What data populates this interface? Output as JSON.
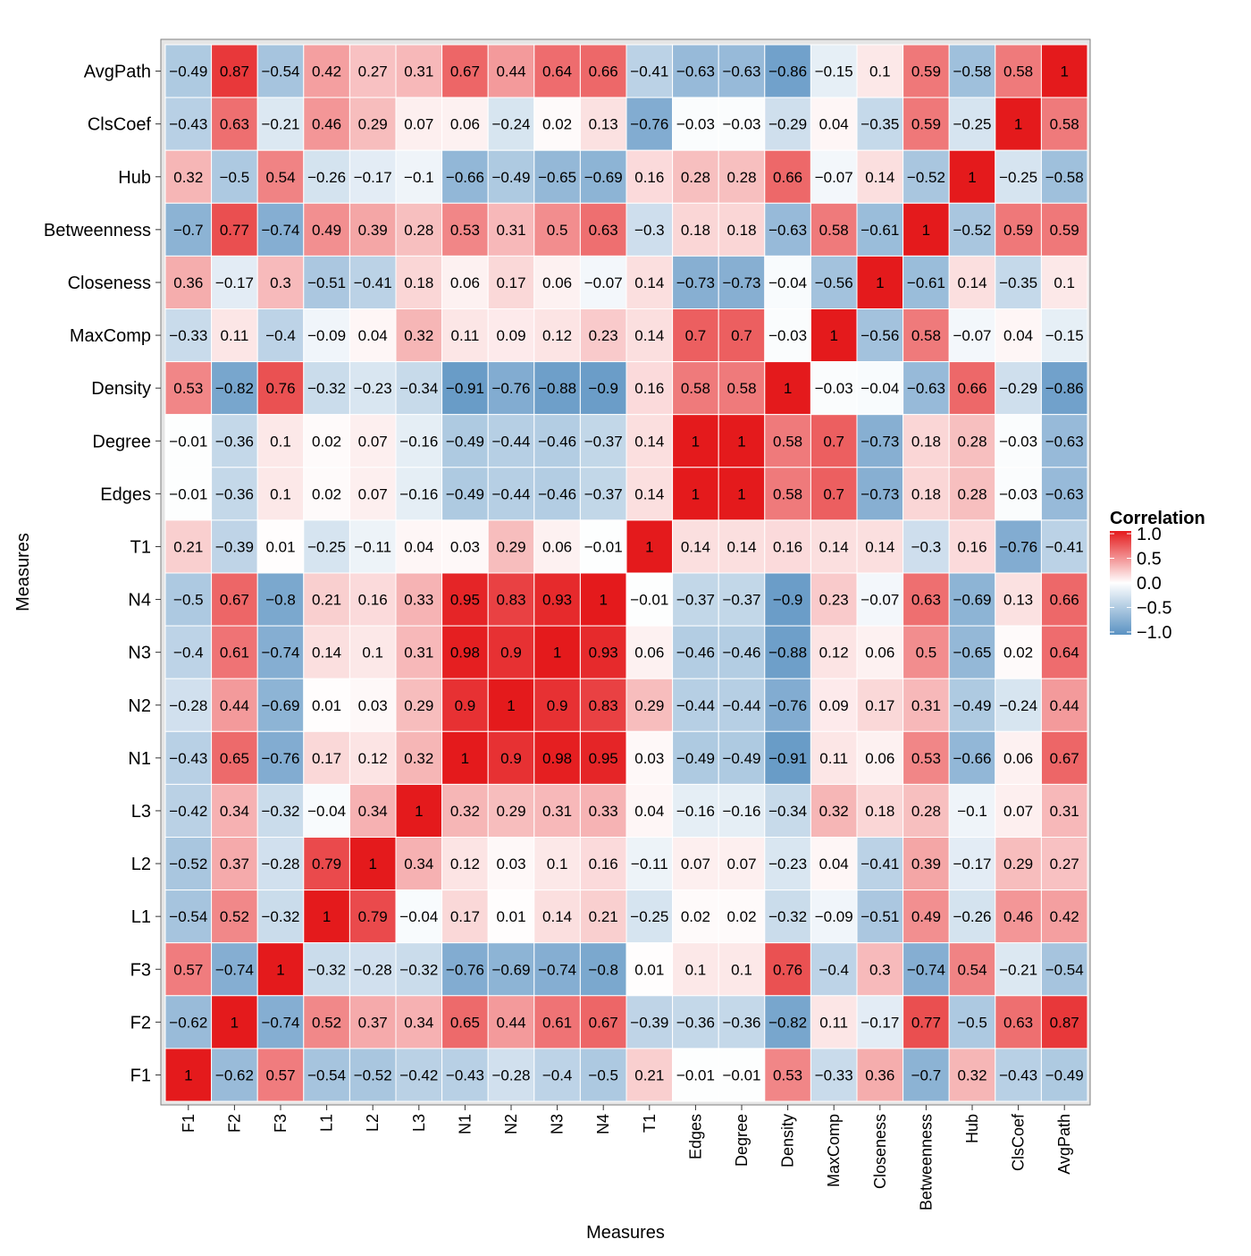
{
  "chart_data": {
    "type": "heatmap",
    "title": "",
    "xlabel": "Measures",
    "ylabel": "Measures",
    "x_categories": [
      "F1",
      "F2",
      "F3",
      "L1",
      "L2",
      "L3",
      "N1",
      "N2",
      "N3",
      "N4",
      "T1",
      "Edges",
      "Degree",
      "Density",
      "MaxComp",
      "Closeness",
      "Betweenness",
      "Hub",
      "ClsCoef",
      "AvgPath"
    ],
    "y_categories_top_to_bottom": [
      "AvgPath",
      "ClsCoef",
      "Hub",
      "Betweenness",
      "Closeness",
      "MaxComp",
      "Density",
      "Degree",
      "Edges",
      "T1",
      "N4",
      "N3",
      "N2",
      "N1",
      "L3",
      "L2",
      "L1",
      "F3",
      "F2",
      "F1"
    ],
    "values": [
      [
        -0.49,
        0.87,
        -0.54,
        0.42,
        0.27,
        0.31,
        0.67,
        0.44,
        0.64,
        0.66,
        -0.41,
        -0.63,
        -0.63,
        -0.86,
        -0.15,
        0.1,
        0.59,
        -0.58,
        0.58,
        1
      ],
      [
        -0.43,
        0.63,
        -0.21,
        0.46,
        0.29,
        0.07,
        0.06,
        -0.24,
        0.02,
        0.13,
        -0.76,
        -0.03,
        -0.03,
        -0.29,
        0.04,
        -0.35,
        0.59,
        -0.25,
        1,
        0.58
      ],
      [
        0.32,
        -0.5,
        0.54,
        -0.26,
        -0.17,
        -0.1,
        -0.66,
        -0.49,
        -0.65,
        -0.69,
        0.16,
        0.28,
        0.28,
        0.66,
        -0.07,
        0.14,
        -0.52,
        1,
        -0.25,
        -0.58
      ],
      [
        -0.7,
        0.77,
        -0.74,
        0.49,
        0.39,
        0.28,
        0.53,
        0.31,
        0.5,
        0.63,
        -0.3,
        0.18,
        0.18,
        -0.63,
        0.58,
        -0.61,
        1,
        -0.52,
        0.59,
        0.59
      ],
      [
        0.36,
        -0.17,
        0.3,
        -0.51,
        -0.41,
        0.18,
        0.06,
        0.17,
        0.06,
        -0.07,
        0.14,
        -0.73,
        -0.73,
        -0.04,
        -0.56,
        1,
        -0.61,
        0.14,
        -0.35,
        0.1
      ],
      [
        -0.33,
        0.11,
        -0.4,
        -0.09,
        0.04,
        0.32,
        0.11,
        0.09,
        0.12,
        0.23,
        0.14,
        0.7,
        0.7,
        -0.03,
        1,
        -0.56,
        0.58,
        -0.07,
        0.04,
        -0.15
      ],
      [
        0.53,
        -0.82,
        0.76,
        -0.32,
        -0.23,
        -0.34,
        -0.91,
        -0.76,
        -0.88,
        -0.9,
        0.16,
        0.58,
        0.58,
        1,
        -0.03,
        -0.04,
        -0.63,
        0.66,
        -0.29,
        -0.86
      ],
      [
        -0.01,
        -0.36,
        0.1,
        0.02,
        0.07,
        -0.16,
        -0.49,
        -0.44,
        -0.46,
        -0.37,
        0.14,
        1,
        1,
        0.58,
        0.7,
        -0.73,
        0.18,
        0.28,
        -0.03,
        -0.63
      ],
      [
        -0.01,
        -0.36,
        0.1,
        0.02,
        0.07,
        -0.16,
        -0.49,
        -0.44,
        -0.46,
        -0.37,
        0.14,
        1,
        1,
        0.58,
        0.7,
        -0.73,
        0.18,
        0.28,
        -0.03,
        -0.63
      ],
      [
        0.21,
        -0.39,
        0.01,
        -0.25,
        -0.11,
        0.04,
        0.03,
        0.29,
        0.06,
        -0.01,
        1,
        0.14,
        0.14,
        0.16,
        0.14,
        0.14,
        -0.3,
        0.16,
        -0.76,
        -0.41
      ],
      [
        -0.5,
        0.67,
        -0.8,
        0.21,
        0.16,
        0.33,
        0.95,
        0.83,
        0.93,
        1,
        -0.01,
        -0.37,
        -0.37,
        -0.9,
        0.23,
        -0.07,
        0.63,
        -0.69,
        0.13,
        0.66
      ],
      [
        -0.4,
        0.61,
        -0.74,
        0.14,
        0.1,
        0.31,
        0.98,
        0.9,
        1,
        0.93,
        0.06,
        -0.46,
        -0.46,
        -0.88,
        0.12,
        0.06,
        0.5,
        -0.65,
        0.02,
        0.64
      ],
      [
        -0.28,
        0.44,
        -0.69,
        0.01,
        0.03,
        0.29,
        0.9,
        1,
        0.9,
        0.83,
        0.29,
        -0.44,
        -0.44,
        -0.76,
        0.09,
        0.17,
        0.31,
        -0.49,
        -0.24,
        0.44
      ],
      [
        -0.43,
        0.65,
        -0.76,
        0.17,
        0.12,
        0.32,
        1,
        0.9,
        0.98,
        0.95,
        0.03,
        -0.49,
        -0.49,
        -0.91,
        0.11,
        0.06,
        0.53,
        -0.66,
        0.06,
        0.67
      ],
      [
        -0.42,
        0.34,
        -0.32,
        -0.04,
        0.34,
        1,
        0.32,
        0.29,
        0.31,
        0.33,
        0.04,
        -0.16,
        -0.16,
        -0.34,
        0.32,
        0.18,
        0.28,
        -0.1,
        0.07,
        0.31
      ],
      [
        -0.52,
        0.37,
        -0.28,
        0.79,
        1,
        0.34,
        0.12,
        0.03,
        0.1,
        0.16,
        -0.11,
        0.07,
        0.07,
        -0.23,
        0.04,
        -0.41,
        0.39,
        -0.17,
        0.29,
        0.27
      ],
      [
        -0.54,
        0.52,
        -0.32,
        1,
        0.79,
        -0.04,
        0.17,
        0.01,
        0.14,
        0.21,
        -0.25,
        0.02,
        0.02,
        -0.32,
        -0.09,
        -0.51,
        0.49,
        -0.26,
        0.46,
        0.42
      ],
      [
        0.57,
        -0.74,
        1,
        -0.32,
        -0.28,
        -0.32,
        -0.76,
        -0.69,
        -0.74,
        -0.8,
        0.01,
        0.1,
        0.1,
        0.76,
        -0.4,
        0.3,
        -0.74,
        0.54,
        -0.21,
        -0.54
      ],
      [
        -0.62,
        1,
        -0.74,
        0.52,
        0.37,
        0.34,
        0.65,
        0.44,
        0.61,
        0.67,
        -0.39,
        -0.36,
        -0.36,
        -0.82,
        0.11,
        -0.17,
        0.77,
        -0.5,
        0.63,
        0.87
      ],
      [
        1,
        -0.62,
        0.57,
        -0.54,
        -0.52,
        -0.42,
        -0.43,
        -0.28,
        -0.4,
        -0.5,
        0.21,
        -0.01,
        -0.01,
        0.53,
        -0.33,
        0.36,
        -0.7,
        0.32,
        -0.43,
        -0.49
      ]
    ],
    "value_range": [
      -1,
      1
    ],
    "grid": true,
    "legend": {
      "title": "Correlation",
      "placement": "right",
      "breaks": [
        1,
        0.5,
        0,
        -0.5,
        -1
      ],
      "break_labels": [
        "1.0",
        "0.5",
        "0.0",
        "−0.5",
        "−1.0"
      ]
    },
    "colors": {
      "low": "#5a92c2",
      "mid": "#ffffff",
      "high": "#e41a1c",
      "panel_background": "#e5e5e5",
      "cell_border": "#ffffff",
      "text": "#000000",
      "axis_text": "#000000"
    }
  }
}
